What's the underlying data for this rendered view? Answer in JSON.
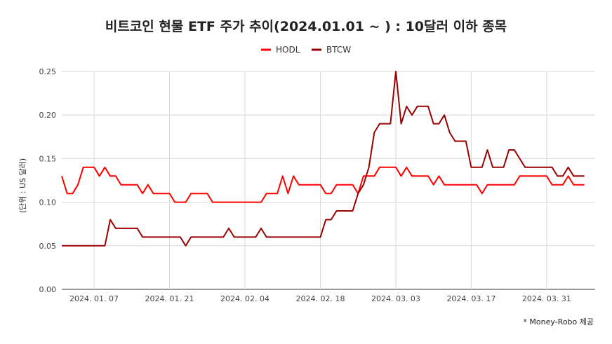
{
  "chart_data": {
    "type": "line",
    "title": "비트코인 현물 ETF 주가 추이(2024.01.01 ~ ) : 10달러 이하 종목",
    "ylabel": "(단위 : US 달러)",
    "xlabel": "",
    "ylim": [
      0,
      0.25
    ],
    "yticks": [
      "0.00",
      "0.05",
      "0.10",
      "0.15",
      "0.20",
      "0.25"
    ],
    "xlim": [
      "2024-01-01",
      "2024-04-09"
    ],
    "xticks": [
      {
        "label": "2024. 01. 07",
        "date": "2024-01-07"
      },
      {
        "label": "2024. 01. 21",
        "date": "2024-01-21"
      },
      {
        "label": "2024. 02. 04",
        "date": "2024-02-04"
      },
      {
        "label": "2024. 02. 18",
        "date": "2024-02-18"
      },
      {
        "label": "2024. 03. 03",
        "date": "2024-03-03"
      },
      {
        "label": "2024. 03. 17",
        "date": "2024-03-17"
      },
      {
        "label": "2024. 03. 31",
        "date": "2024-03-31"
      }
    ],
    "grid": true,
    "legend_position": "top-center",
    "series": [
      {
        "name": "HODL",
        "color": "#ff0000",
        "points": [
          [
            "2024-01-01",
            0.13
          ],
          [
            "2024-01-02",
            0.11
          ],
          [
            "2024-01-03",
            0.11
          ],
          [
            "2024-01-04",
            0.12
          ],
          [
            "2024-01-05",
            0.14
          ],
          [
            "2024-01-06",
            0.14
          ],
          [
            "2024-01-07",
            0.14
          ],
          [
            "2024-01-08",
            0.13
          ],
          [
            "2024-01-09",
            0.14
          ],
          [
            "2024-01-10",
            0.13
          ],
          [
            "2024-01-11",
            0.13
          ],
          [
            "2024-01-12",
            0.12
          ],
          [
            "2024-01-13",
            0.12
          ],
          [
            "2024-01-14",
            0.12
          ],
          [
            "2024-01-15",
            0.12
          ],
          [
            "2024-01-16",
            0.11
          ],
          [
            "2024-01-17",
            0.12
          ],
          [
            "2024-01-18",
            0.11
          ],
          [
            "2024-01-19",
            0.11
          ],
          [
            "2024-01-20",
            0.11
          ],
          [
            "2024-01-21",
            0.11
          ],
          [
            "2024-01-22",
            0.1
          ],
          [
            "2024-01-23",
            0.1
          ],
          [
            "2024-01-24",
            0.1
          ],
          [
            "2024-01-25",
            0.11
          ],
          [
            "2024-01-26",
            0.11
          ],
          [
            "2024-01-27",
            0.11
          ],
          [
            "2024-01-28",
            0.11
          ],
          [
            "2024-01-29",
            0.1
          ],
          [
            "2024-01-30",
            0.1
          ],
          [
            "2024-01-31",
            0.1
          ],
          [
            "2024-02-01",
            0.1
          ],
          [
            "2024-02-02",
            0.1
          ],
          [
            "2024-02-03",
            0.1
          ],
          [
            "2024-02-04",
            0.1
          ],
          [
            "2024-02-05",
            0.1
          ],
          [
            "2024-02-06",
            0.1
          ],
          [
            "2024-02-07",
            0.1
          ],
          [
            "2024-02-08",
            0.11
          ],
          [
            "2024-02-09",
            0.11
          ],
          [
            "2024-02-10",
            0.11
          ],
          [
            "2024-02-11",
            0.13
          ],
          [
            "2024-02-12",
            0.11
          ],
          [
            "2024-02-13",
            0.13
          ],
          [
            "2024-02-14",
            0.12
          ],
          [
            "2024-02-15",
            0.12
          ],
          [
            "2024-02-16",
            0.12
          ],
          [
            "2024-02-17",
            0.12
          ],
          [
            "2024-02-18",
            0.12
          ],
          [
            "2024-02-19",
            0.11
          ],
          [
            "2024-02-20",
            0.11
          ],
          [
            "2024-02-21",
            0.12
          ],
          [
            "2024-02-22",
            0.12
          ],
          [
            "2024-02-23",
            0.12
          ],
          [
            "2024-02-24",
            0.12
          ],
          [
            "2024-02-25",
            0.11
          ],
          [
            "2024-02-26",
            0.13
          ],
          [
            "2024-02-27",
            0.13
          ],
          [
            "2024-02-28",
            0.13
          ],
          [
            "2024-02-29",
            0.14
          ],
          [
            "2024-03-01",
            0.14
          ],
          [
            "2024-03-02",
            0.14
          ],
          [
            "2024-03-03",
            0.14
          ],
          [
            "2024-03-04",
            0.13
          ],
          [
            "2024-03-05",
            0.14
          ],
          [
            "2024-03-06",
            0.13
          ],
          [
            "2024-03-07",
            0.13
          ],
          [
            "2024-03-08",
            0.13
          ],
          [
            "2024-03-09",
            0.13
          ],
          [
            "2024-03-10",
            0.12
          ],
          [
            "2024-03-11",
            0.13
          ],
          [
            "2024-03-12",
            0.12
          ],
          [
            "2024-03-13",
            0.12
          ],
          [
            "2024-03-14",
            0.12
          ],
          [
            "2024-03-15",
            0.12
          ],
          [
            "2024-03-16",
            0.12
          ],
          [
            "2024-03-17",
            0.12
          ],
          [
            "2024-03-18",
            0.12
          ],
          [
            "2024-03-19",
            0.11
          ],
          [
            "2024-03-20",
            0.12
          ],
          [
            "2024-03-21",
            0.12
          ],
          [
            "2024-03-22",
            0.12
          ],
          [
            "2024-03-23",
            0.12
          ],
          [
            "2024-03-24",
            0.12
          ],
          [
            "2024-03-25",
            0.12
          ],
          [
            "2024-03-26",
            0.13
          ],
          [
            "2024-03-27",
            0.13
          ],
          [
            "2024-03-28",
            0.13
          ],
          [
            "2024-03-29",
            0.13
          ],
          [
            "2024-03-30",
            0.13
          ],
          [
            "2024-03-31",
            0.13
          ],
          [
            "2024-04-01",
            0.12
          ],
          [
            "2024-04-02",
            0.12
          ],
          [
            "2024-04-03",
            0.12
          ],
          [
            "2024-04-04",
            0.13
          ],
          [
            "2024-04-05",
            0.12
          ],
          [
            "2024-04-06",
            0.12
          ],
          [
            "2024-04-07",
            0.12
          ]
        ]
      },
      {
        "name": "BTCW",
        "color": "#990000",
        "points": [
          [
            "2024-01-01",
            0.05
          ],
          [
            "2024-01-02",
            0.05
          ],
          [
            "2024-01-03",
            0.05
          ],
          [
            "2024-01-04",
            0.05
          ],
          [
            "2024-01-05",
            0.05
          ],
          [
            "2024-01-06",
            0.05
          ],
          [
            "2024-01-07",
            0.05
          ],
          [
            "2024-01-08",
            0.05
          ],
          [
            "2024-01-09",
            0.05
          ],
          [
            "2024-01-10",
            0.08
          ],
          [
            "2024-01-11",
            0.07
          ],
          [
            "2024-01-12",
            0.07
          ],
          [
            "2024-01-13",
            0.07
          ],
          [
            "2024-01-14",
            0.07
          ],
          [
            "2024-01-15",
            0.07
          ],
          [
            "2024-01-16",
            0.06
          ],
          [
            "2024-01-17",
            0.06
          ],
          [
            "2024-01-18",
            0.06
          ],
          [
            "2024-01-19",
            0.06
          ],
          [
            "2024-01-20",
            0.06
          ],
          [
            "2024-01-21",
            0.06
          ],
          [
            "2024-01-22",
            0.06
          ],
          [
            "2024-01-23",
            0.06
          ],
          [
            "2024-01-24",
            0.05
          ],
          [
            "2024-01-25",
            0.06
          ],
          [
            "2024-01-26",
            0.06
          ],
          [
            "2024-01-27",
            0.06
          ],
          [
            "2024-01-28",
            0.06
          ],
          [
            "2024-01-29",
            0.06
          ],
          [
            "2024-01-30",
            0.06
          ],
          [
            "2024-01-31",
            0.06
          ],
          [
            "2024-02-01",
            0.07
          ],
          [
            "2024-02-02",
            0.06
          ],
          [
            "2024-02-03",
            0.06
          ],
          [
            "2024-02-04",
            0.06
          ],
          [
            "2024-02-05",
            0.06
          ],
          [
            "2024-02-06",
            0.06
          ],
          [
            "2024-02-07",
            0.07
          ],
          [
            "2024-02-08",
            0.06
          ],
          [
            "2024-02-09",
            0.06
          ],
          [
            "2024-02-10",
            0.06
          ],
          [
            "2024-02-11",
            0.06
          ],
          [
            "2024-02-12",
            0.06
          ],
          [
            "2024-02-13",
            0.06
          ],
          [
            "2024-02-14",
            0.06
          ],
          [
            "2024-02-15",
            0.06
          ],
          [
            "2024-02-16",
            0.06
          ],
          [
            "2024-02-17",
            0.06
          ],
          [
            "2024-02-18",
            0.06
          ],
          [
            "2024-02-19",
            0.08
          ],
          [
            "2024-02-20",
            0.08
          ],
          [
            "2024-02-21",
            0.09
          ],
          [
            "2024-02-22",
            0.09
          ],
          [
            "2024-02-23",
            0.09
          ],
          [
            "2024-02-24",
            0.09
          ],
          [
            "2024-02-25",
            0.11
          ],
          [
            "2024-02-26",
            0.12
          ],
          [
            "2024-02-27",
            0.14
          ],
          [
            "2024-02-28",
            0.18
          ],
          [
            "2024-02-29",
            0.19
          ],
          [
            "2024-03-01",
            0.19
          ],
          [
            "2024-03-02",
            0.19
          ],
          [
            "2024-03-03",
            0.25
          ],
          [
            "2024-03-04",
            0.19
          ],
          [
            "2024-03-05",
            0.21
          ],
          [
            "2024-03-06",
            0.2
          ],
          [
            "2024-03-07",
            0.21
          ],
          [
            "2024-03-08",
            0.21
          ],
          [
            "2024-03-09",
            0.21
          ],
          [
            "2024-03-10",
            0.19
          ],
          [
            "2024-03-11",
            0.19
          ],
          [
            "2024-03-12",
            0.2
          ],
          [
            "2024-03-13",
            0.18
          ],
          [
            "2024-03-14",
            0.17
          ],
          [
            "2024-03-15",
            0.17
          ],
          [
            "2024-03-16",
            0.17
          ],
          [
            "2024-03-17",
            0.14
          ],
          [
            "2024-03-18",
            0.14
          ],
          [
            "2024-03-19",
            0.14
          ],
          [
            "2024-03-20",
            0.16
          ],
          [
            "2024-03-21",
            0.14
          ],
          [
            "2024-03-22",
            0.14
          ],
          [
            "2024-03-23",
            0.14
          ],
          [
            "2024-03-24",
            0.16
          ],
          [
            "2024-03-25",
            0.16
          ],
          [
            "2024-03-26",
            0.15
          ],
          [
            "2024-03-27",
            0.14
          ],
          [
            "2024-03-28",
            0.14
          ],
          [
            "2024-03-29",
            0.14
          ],
          [
            "2024-03-30",
            0.14
          ],
          [
            "2024-03-31",
            0.14
          ],
          [
            "2024-04-01",
            0.14
          ],
          [
            "2024-04-02",
            0.13
          ],
          [
            "2024-04-03",
            0.13
          ],
          [
            "2024-04-04",
            0.14
          ],
          [
            "2024-04-05",
            0.13
          ],
          [
            "2024-04-06",
            0.13
          ],
          [
            "2024-04-07",
            0.13
          ]
        ]
      }
    ]
  },
  "credit": "* Money-Robo 제공"
}
